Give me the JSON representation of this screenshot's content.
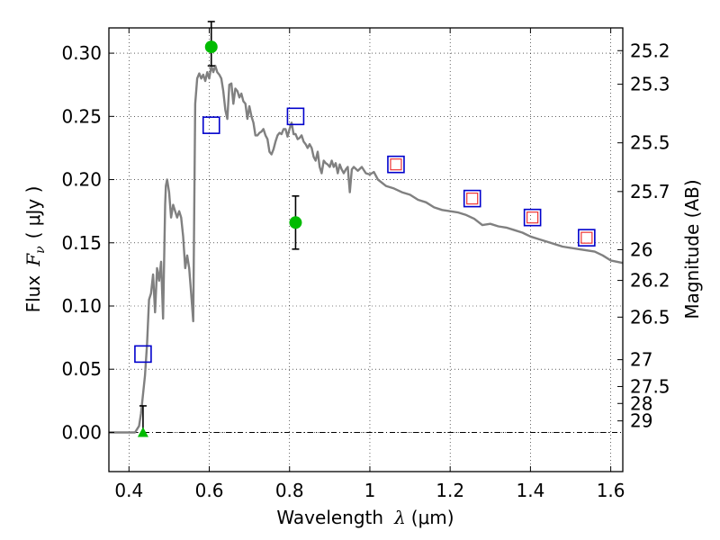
{
  "chart_data": {
    "type": "line",
    "xlabel": {
      "text": "Wavelength",
      "symbol": "λ",
      "unit": "(μm)"
    },
    "ylabel": {
      "text": "Flux",
      "symbol": "F",
      "symbol_sub": "ν",
      "unit": "( μJy )"
    },
    "y2label": "Magnitude (AB)",
    "xlim": [
      0.35,
      1.63
    ],
    "ylim": [
      -0.031,
      0.32
    ],
    "grid": true,
    "x_ticks": [
      0.4,
      0.6,
      0.8,
      1.0,
      1.2,
      1.4,
      1.6
    ],
    "x_tick_labels": [
      "0.4",
      "0.6",
      "0.8",
      "1",
      "1.2",
      "1.4",
      "1.6"
    ],
    "y_ticks": [
      0.0,
      0.05,
      0.1,
      0.15,
      0.2,
      0.25,
      0.3
    ],
    "y_tick_labels": [
      "0.00",
      "0.05",
      "0.10",
      "0.15",
      "0.20",
      "0.25",
      "0.30"
    ],
    "mag_ticks": [
      {
        "mag": 25.2,
        "label": "25.2"
      },
      {
        "mag": 25.3,
        "label": "25.3"
      },
      {
        "mag": 25.5,
        "label": "25.5"
      },
      {
        "mag": 25.7,
        "label": "25.7"
      },
      {
        "mag": 26.0,
        "label": "26"
      },
      {
        "mag": 26.2,
        "label": "26.2"
      },
      {
        "mag": 26.5,
        "label": "26.5"
      },
      {
        "mag": 27.0,
        "label": "27"
      },
      {
        "mag": 27.5,
        "label": "27.5"
      },
      {
        "mag": 28.0,
        "label": "28"
      },
      {
        "mag": 29.0,
        "label": "29"
      }
    ],
    "colors": {
      "model": "#808080",
      "observed": "#00bb00",
      "model_photometry": "#0000cc",
      "inner_squares": "#ee3333",
      "errorbar": "#000000",
      "zero_line": "#000000"
    },
    "model_spectrum": [
      [
        0.35,
        0.0
      ],
      [
        0.41,
        0.0
      ],
      [
        0.415,
        0.0
      ],
      [
        0.425,
        0.005
      ],
      [
        0.43,
        0.015
      ],
      [
        0.44,
        0.045
      ],
      [
        0.445,
        0.07
      ],
      [
        0.45,
        0.105
      ],
      [
        0.455,
        0.11
      ],
      [
        0.46,
        0.125
      ],
      [
        0.465,
        0.095
      ],
      [
        0.47,
        0.13
      ],
      [
        0.475,
        0.12
      ],
      [
        0.48,
        0.135
      ],
      [
        0.485,
        0.09
      ],
      [
        0.49,
        0.18
      ],
      [
        0.492,
        0.195
      ],
      [
        0.495,
        0.2
      ],
      [
        0.5,
        0.19
      ],
      [
        0.505,
        0.17
      ],
      [
        0.51,
        0.18
      ],
      [
        0.515,
        0.175
      ],
      [
        0.52,
        0.17
      ],
      [
        0.525,
        0.175
      ],
      [
        0.53,
        0.17
      ],
      [
        0.535,
        0.155
      ],
      [
        0.54,
        0.13
      ],
      [
        0.545,
        0.14
      ],
      [
        0.55,
        0.13
      ],
      [
        0.555,
        0.11
      ],
      [
        0.56,
        0.088
      ],
      [
        0.565,
        0.26
      ],
      [
        0.57,
        0.28
      ],
      [
        0.575,
        0.284
      ],
      [
        0.58,
        0.28
      ],
      [
        0.585,
        0.283
      ],
      [
        0.59,
        0.278
      ],
      [
        0.595,
        0.285
      ],
      [
        0.6,
        0.28
      ],
      [
        0.605,
        0.29
      ],
      [
        0.61,
        0.285
      ],
      [
        0.615,
        0.29
      ],
      [
        0.62,
        0.285
      ],
      [
        0.625,
        0.283
      ],
      [
        0.63,
        0.28
      ],
      [
        0.635,
        0.27
      ],
      [
        0.64,
        0.255
      ],
      [
        0.645,
        0.248
      ],
      [
        0.65,
        0.275
      ],
      [
        0.655,
        0.276
      ],
      [
        0.66,
        0.26
      ],
      [
        0.665,
        0.272
      ],
      [
        0.67,
        0.27
      ],
      [
        0.675,
        0.265
      ],
      [
        0.68,
        0.268
      ],
      [
        0.685,
        0.262
      ],
      [
        0.69,
        0.26
      ],
      [
        0.695,
        0.248
      ],
      [
        0.7,
        0.258
      ],
      [
        0.705,
        0.25
      ],
      [
        0.71,
        0.245
      ],
      [
        0.715,
        0.235
      ],
      [
        0.72,
        0.235
      ],
      [
        0.725,
        0.237
      ],
      [
        0.73,
        0.238
      ],
      [
        0.735,
        0.24
      ],
      [
        0.74,
        0.235
      ],
      [
        0.745,
        0.232
      ],
      [
        0.75,
        0.222
      ],
      [
        0.755,
        0.22
      ],
      [
        0.76,
        0.224
      ],
      [
        0.765,
        0.23
      ],
      [
        0.77,
        0.235
      ],
      [
        0.775,
        0.237
      ],
      [
        0.78,
        0.236
      ],
      [
        0.785,
        0.24
      ],
      [
        0.79,
        0.24
      ],
      [
        0.795,
        0.234
      ],
      [
        0.8,
        0.24
      ],
      [
        0.805,
        0.245
      ],
      [
        0.81,
        0.236
      ],
      [
        0.815,
        0.236
      ],
      [
        0.82,
        0.232
      ],
      [
        0.825,
        0.233
      ],
      [
        0.83,
        0.235
      ],
      [
        0.835,
        0.23
      ],
      [
        0.84,
        0.228
      ],
      [
        0.845,
        0.225
      ],
      [
        0.85,
        0.228
      ],
      [
        0.855,
        0.225
      ],
      [
        0.86,
        0.218
      ],
      [
        0.865,
        0.215
      ],
      [
        0.87,
        0.222
      ],
      [
        0.875,
        0.21
      ],
      [
        0.88,
        0.205
      ],
      [
        0.885,
        0.215
      ],
      [
        0.89,
        0.213
      ],
      [
        0.895,
        0.212
      ],
      [
        0.9,
        0.21
      ],
      [
        0.905,
        0.215
      ],
      [
        0.91,
        0.21
      ],
      [
        0.915,
        0.213
      ],
      [
        0.92,
        0.205
      ],
      [
        0.925,
        0.212
      ],
      [
        0.93,
        0.208
      ],
      [
        0.935,
        0.205
      ],
      [
        0.94,
        0.208
      ],
      [
        0.945,
        0.21
      ],
      [
        0.95,
        0.19
      ],
      [
        0.955,
        0.208
      ],
      [
        0.96,
        0.21
      ],
      [
        0.97,
        0.207
      ],
      [
        0.98,
        0.21
      ],
      [
        0.99,
        0.205
      ],
      [
        1.0,
        0.204
      ],
      [
        1.01,
        0.206
      ],
      [
        1.02,
        0.2
      ],
      [
        1.04,
        0.195
      ],
      [
        1.06,
        0.193
      ],
      [
        1.08,
        0.19
      ],
      [
        1.1,
        0.188
      ],
      [
        1.12,
        0.184
      ],
      [
        1.14,
        0.182
      ],
      [
        1.16,
        0.178
      ],
      [
        1.18,
        0.176
      ],
      [
        1.2,
        0.175
      ],
      [
        1.22,
        0.174
      ],
      [
        1.24,
        0.172
      ],
      [
        1.26,
        0.169
      ],
      [
        1.28,
        0.164
      ],
      [
        1.3,
        0.165
      ],
      [
        1.32,
        0.163
      ],
      [
        1.34,
        0.162
      ],
      [
        1.36,
        0.16
      ],
      [
        1.38,
        0.158
      ],
      [
        1.4,
        0.155
      ],
      [
        1.42,
        0.153
      ],
      [
        1.44,
        0.151
      ],
      [
        1.46,
        0.149
      ],
      [
        1.48,
        0.147
      ],
      [
        1.5,
        0.146
      ],
      [
        1.52,
        0.145
      ],
      [
        1.54,
        0.144
      ],
      [
        1.56,
        0.143
      ],
      [
        1.58,
        0.14
      ],
      [
        1.6,
        0.136
      ],
      [
        1.63,
        0.134
      ]
    ],
    "observed_points": [
      {
        "x": 0.605,
        "y": 0.305,
        "yerr_lo": 0.015,
        "yerr_hi": 0.02,
        "marker": "circle"
      },
      {
        "x": 0.815,
        "y": 0.166,
        "yerr_lo": 0.021,
        "yerr_hi": 0.021,
        "marker": "circle"
      },
      {
        "x": 0.435,
        "y": 0.0,
        "yerr_lo": 0.0,
        "yerr_hi": 0.021,
        "marker": "triangle"
      }
    ],
    "model_photometry": [
      {
        "x": 0.435,
        "y": 0.062,
        "inner": false
      },
      {
        "x": 0.605,
        "y": 0.243,
        "inner": false
      },
      {
        "x": 0.815,
        "y": 0.25,
        "inner": false
      },
      {
        "x": 1.065,
        "y": 0.212,
        "inner": true
      },
      {
        "x": 1.255,
        "y": 0.185,
        "inner": true
      },
      {
        "x": 1.405,
        "y": 0.17,
        "inner": true
      },
      {
        "x": 1.54,
        "y": 0.154,
        "inner": true
      }
    ]
  }
}
